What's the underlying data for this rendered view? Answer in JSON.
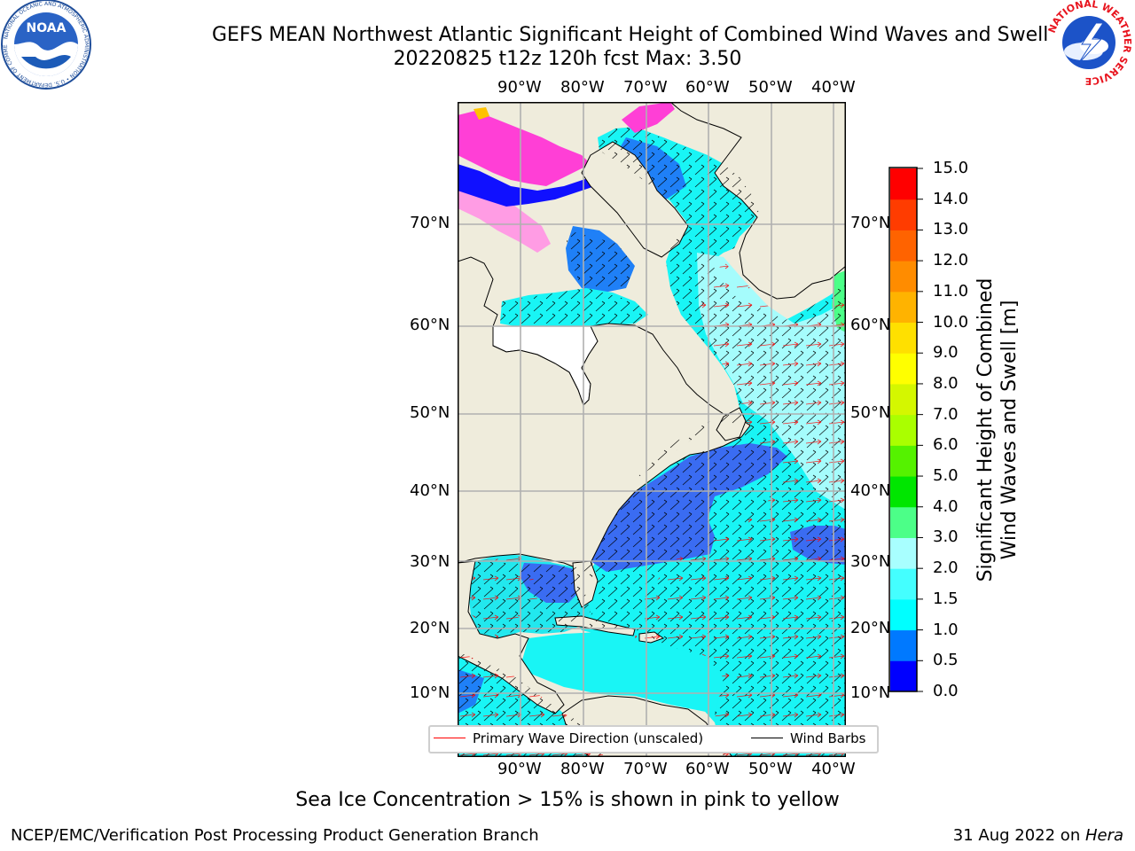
{
  "title": {
    "line1": "GEFS MEAN Northwest Atlantic Significant Height of Combined Wind Waves and Swell",
    "line2": "20220825 t12z 120h fcst   Max: 3.50"
  },
  "logos": {
    "noaa": {
      "icon": "noaa-logo",
      "text": "NOAA",
      "ring_text": "NATIONAL OCEANIC AND ATMOSPHERIC ADMINISTRATION • U.S. DEPARTMENT OF COMMERCE"
    },
    "nws": {
      "icon": "nws-logo",
      "ring_text": "NATIONAL WEATHER SERVICE"
    }
  },
  "map": {
    "lon_ticks": [
      "90°W",
      "80°W",
      "70°W",
      "60°W",
      "50°W",
      "40°W"
    ],
    "lat_ticks": [
      "70°N",
      "60°N",
      "50°N",
      "40°N",
      "30°N",
      "20°N",
      "10°N"
    ],
    "land_color": "#efecdc",
    "ocean_colors": {
      "dark_blue": "#3a6cf2",
      "cyan": "#00ffff",
      "light_cyan": "#99ffff",
      "mid_blue": "#0e7ff8",
      "green": "#4cff7f"
    },
    "ice_colors": [
      "#ff3fd6",
      "#ffa0e6",
      "#ffc200"
    ],
    "grid_color": "#b0b0b0"
  },
  "legend": {
    "items": [
      {
        "label": "Primary Wave Direction (unscaled)",
        "color": "#ff0000"
      },
      {
        "label": "Wind Barbs",
        "color": "#000000"
      }
    ]
  },
  "colorbar": {
    "title_line1": "Significant Height of Combined",
    "title_line2": "Wind Waves and Swell [m]",
    "ticks": [
      "0.0",
      "0.5",
      "1.0",
      "1.5",
      "2.0",
      "3.0",
      "4.0",
      "5.0",
      "6.0",
      "7.0",
      "8.0",
      "9.0",
      "10.0",
      "11.0",
      "12.0",
      "13.0",
      "14.0",
      "15.0"
    ],
    "colors": [
      "#0000ff",
      "#0079ff",
      "#00ffff",
      "#44ffff",
      "#a8ffff",
      "#4cff88",
      "#00e600",
      "#55f200",
      "#aaff00",
      "#d4f700",
      "#ffff00",
      "#ffe000",
      "#ffb300",
      "#ff8c00",
      "#ff6300",
      "#ff3c00",
      "#ff0000"
    ]
  },
  "footnote": "Sea Ice Concentration > 15% is shown in pink to yellow",
  "credit": {
    "left": "NCEP/EMC/Verification Post Processing Product Generation Branch",
    "right_date": "31 Aug 2022 on ",
    "right_host": "Hera"
  }
}
